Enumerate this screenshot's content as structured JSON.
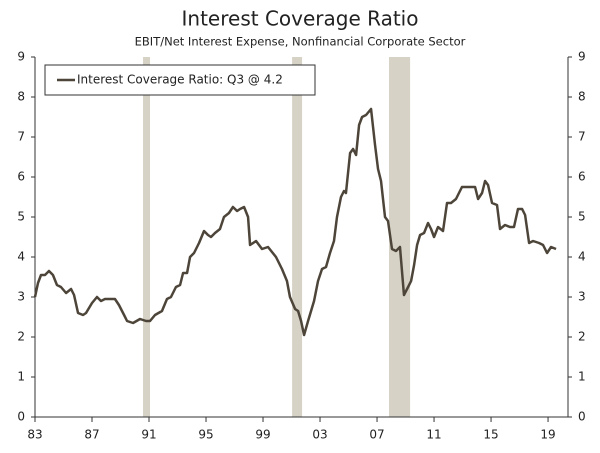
{
  "chart_data": {
    "type": "line",
    "title": "Interest Coverage Ratio",
    "subtitle": "EBIT/Net Interest Expense, Nonfinancial Corporate Sector",
    "x": [
      1983.0,
      1983.21,
      1983.42,
      1983.7,
      1983.98,
      1984.26,
      1984.54,
      1984.82,
      1985.18,
      1985.53,
      1985.74,
      1986.02,
      1986.37,
      1986.58,
      1987.0,
      1987.35,
      1987.63,
      1987.91,
      1988.26,
      1988.61,
      1988.89,
      1989.25,
      1989.46,
      1989.88,
      1990.37,
      1990.79,
      1991.07,
      1991.42,
      1991.91,
      1992.26,
      1992.54,
      1992.89,
      1993.18,
      1993.39,
      1993.67,
      1993.88,
      1994.16,
      1994.51,
      1994.86,
      1995.14,
      1995.35,
      1995.63,
      1995.98,
      1996.26,
      1996.61,
      1996.89,
      1997.18,
      1997.39,
      1997.67,
      1997.95,
      1998.09,
      1998.51,
      1998.93,
      1999.35,
      1999.91,
      2000.33,
      2000.68,
      2000.89,
      2001.25,
      2001.46,
      2001.67,
      2001.88,
      2002.16,
      2002.58,
      2002.86,
      2003.14,
      2003.42,
      2003.7,
      2003.98,
      2004.19,
      2004.47,
      2004.68,
      2004.82,
      2005.11,
      2005.32,
      2005.53,
      2005.74,
      2005.95,
      2006.23,
      2006.58,
      2006.86,
      2007.07,
      2007.28,
      2007.56,
      2007.77,
      2008.05,
      2008.33,
      2008.61,
      2008.89,
      2009.18,
      2009.39,
      2009.6,
      2009.81,
      2010.02,
      2010.3,
      2010.58,
      2010.79,
      2011.0,
      2011.28,
      2011.63,
      2011.91,
      2012.19,
      2012.54,
      2012.96,
      2013.53,
      2013.88,
      2014.09,
      2014.37,
      2014.58,
      2014.79,
      2015.07,
      2015.42,
      2015.63,
      2015.98,
      2016.33,
      2016.61,
      2016.89,
      2017.18,
      2017.39,
      2017.67,
      2017.95,
      2018.37,
      2018.65,
      2018.93,
      2019.21,
      2019.56
    ],
    "series": [
      {
        "name": "Interest Coverage Ratio: Q3 @ 4.2",
        "color": "#4d4539",
        "values": [
          3.0,
          3.35,
          3.55,
          3.55,
          3.65,
          3.55,
          3.3,
          3.25,
          3.1,
          3.2,
          3.05,
          2.6,
          2.55,
          2.6,
          2.85,
          3.0,
          2.9,
          2.95,
          2.95,
          2.95,
          2.8,
          2.55,
          2.4,
          2.35,
          2.45,
          2.4,
          2.4,
          2.55,
          2.65,
          2.95,
          3.0,
          3.25,
          3.3,
          3.6,
          3.6,
          4.0,
          4.1,
          4.35,
          4.65,
          4.55,
          4.5,
          4.6,
          4.7,
          5.0,
          5.1,
          5.25,
          5.15,
          5.2,
          5.25,
          5.0,
          4.3,
          4.4,
          4.2,
          4.25,
          4.0,
          3.7,
          3.4,
          3.0,
          2.7,
          2.65,
          2.4,
          2.05,
          2.4,
          2.9,
          3.4,
          3.7,
          3.75,
          4.1,
          4.4,
          5.0,
          5.5,
          5.65,
          5.6,
          6.6,
          6.7,
          6.55,
          7.3,
          7.5,
          7.55,
          7.7,
          6.8,
          6.2,
          5.9,
          5.0,
          4.9,
          4.2,
          4.15,
          4.25,
          3.05,
          3.25,
          3.4,
          3.8,
          4.3,
          4.55,
          4.6,
          4.85,
          4.7,
          4.5,
          4.75,
          4.65,
          5.35,
          5.35,
          5.45,
          5.75,
          5.75,
          5.75,
          5.45,
          5.6,
          5.9,
          5.8,
          5.35,
          5.3,
          4.7,
          4.8,
          4.75,
          4.75,
          5.2,
          5.2,
          5.05,
          4.35,
          4.4,
          4.35,
          4.3,
          4.1,
          4.25,
          4.2
        ]
      }
    ],
    "shaded_regions": [
      [
        1990.58,
        1991.07
      ],
      [
        2001.04,
        2001.74
      ],
      [
        2007.84,
        2009.32
      ]
    ],
    "shade_color": "#d6d2c6",
    "xlim": [
      1983,
      2020.4
    ],
    "xticks": [
      {
        "value": 1983,
        "label": "83"
      },
      {
        "value": 1987,
        "label": "87"
      },
      {
        "value": 1991,
        "label": "91"
      },
      {
        "value": 1995,
        "label": "95"
      },
      {
        "value": 1999,
        "label": "99"
      },
      {
        "value": 2003,
        "label": "03"
      },
      {
        "value": 2007,
        "label": "07"
      },
      {
        "value": 2011,
        "label": "11"
      },
      {
        "value": 2015,
        "label": "15"
      },
      {
        "value": 2019,
        "label": "19"
      }
    ],
    "ylim": [
      0,
      9
    ],
    "yticks": [
      0,
      1,
      2,
      3,
      4,
      5,
      6,
      7,
      8,
      9
    ],
    "y2lim": [
      0,
      9
    ],
    "y2ticks": [
      0,
      1,
      2,
      3,
      4,
      5,
      6,
      7,
      8,
      9
    ],
    "legend": "upper left",
    "grid": false
  }
}
